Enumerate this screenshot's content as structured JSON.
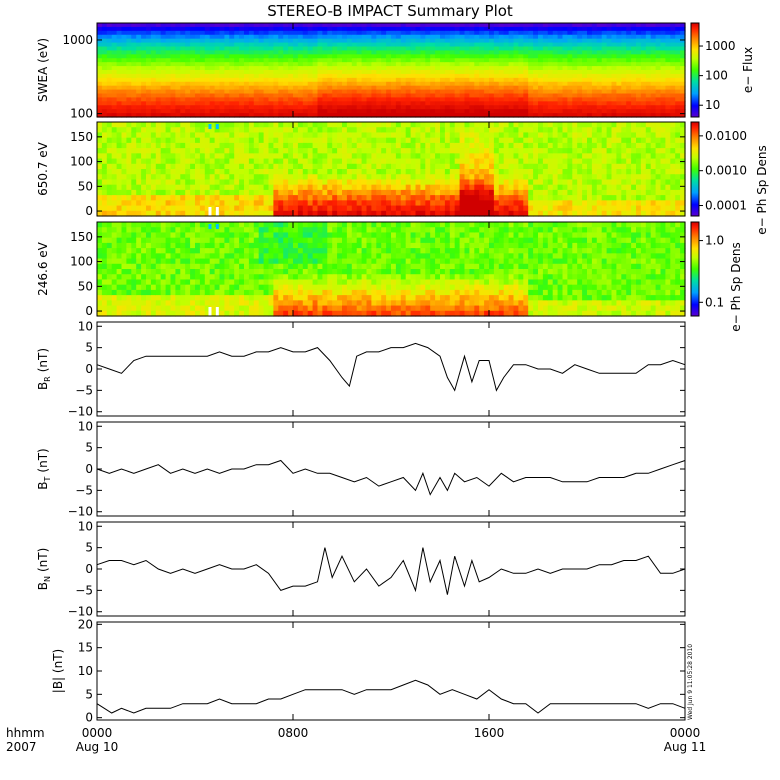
{
  "title": "STEREO-B IMPACT Summary Plot",
  "footer": {
    "time_label": "hhmm",
    "year_label": "2007",
    "stamp": "Wed Jun  9 11:05:28 2010"
  },
  "x_ticks": [
    {
      "value": 0,
      "label": "0000",
      "sublabel": "Aug 10"
    },
    {
      "value": 8,
      "label": "0800",
      "sublabel": ""
    },
    {
      "value": 16,
      "label": "1600",
      "sublabel": ""
    },
    {
      "value": 24,
      "label": "0000",
      "sublabel": "Aug 11"
    }
  ],
  "colorbars": [
    {
      "label": "e− Flux",
      "ticks": [
        {
          "value": 1000,
          "label": "1000"
        },
        {
          "value": 100,
          "label": "100"
        },
        {
          "value": 10,
          "label": "10"
        }
      ],
      "range": [
        4,
        6000
      ]
    },
    {
      "label": "e− Ph Sp Dens",
      "ticks": [
        {
          "value": 0.01,
          "label": "0.0100"
        },
        {
          "value": 0.001,
          "label": "0.0010"
        },
        {
          "value": 0.0001,
          "label": "0.0001"
        }
      ],
      "range": [
        5e-05,
        0.025
      ]
    },
    {
      "label": "e− Ph Sp Dens",
      "ticks": [
        {
          "value": 1.0,
          "label": "1.0"
        },
        {
          "value": 0.1,
          "label": "0.1"
        }
      ],
      "range": [
        0.06,
        2.0
      ]
    }
  ],
  "colors": {
    "scale": [
      "#5a00d0",
      "#0000ff",
      "#00a0ff",
      "#00e0a0",
      "#40ff00",
      "#c0ff00",
      "#ffe000",
      "#ff8000",
      "#ff2000",
      "#d00000"
    ],
    "axis": "#000000",
    "line": "#000000"
  },
  "chart_data": [
    {
      "type": "heatmap",
      "panel": "swea",
      "ylabel": "SWEA (eV)",
      "yscale": "log",
      "ylim": [
        90,
        1700
      ],
      "y_ticks": [
        {
          "value": 1000,
          "label": "1000"
        },
        {
          "value": 100,
          "label": "100"
        }
      ],
      "colorbar_label": "e− Flux",
      "description_bands": [
        {
          "energy_eV": 1600,
          "level": 0.05
        },
        {
          "energy_eV": 1000,
          "level": 0.35
        },
        {
          "energy_eV": 500,
          "level": 0.58
        },
        {
          "energy_eV": 250,
          "level": 0.72
        },
        {
          "energy_eV": 150,
          "level": 0.85
        },
        {
          "energy_eV": 100,
          "level": 0.92
        }
      ]
    },
    {
      "type": "heatmap",
      "panel": "pad_650",
      "ylabel": "650.7 eV",
      "ylim": [
        -10,
        180
      ],
      "y_ticks": [
        {
          "value": 150,
          "label": "150"
        },
        {
          "value": 100,
          "label": "100"
        },
        {
          "value": 50,
          "label": "50"
        },
        {
          "value": 0,
          "label": "0"
        }
      ],
      "colorbar_label": "e− Ph Sp Dens"
    },
    {
      "type": "heatmap",
      "panel": "pad_246",
      "ylabel": "246.6 eV",
      "ylim": [
        -10,
        180
      ],
      "y_ticks": [
        {
          "value": 150,
          "label": "150"
        },
        {
          "value": 100,
          "label": "100"
        },
        {
          "value": 50,
          "label": "50"
        },
        {
          "value": 0,
          "label": "0"
        }
      ],
      "colorbar_label": "e− Ph Sp Dens"
    },
    {
      "type": "line",
      "panel": "br",
      "ylabel": "B",
      "ylabel_sub": "R",
      "ylabel_unit": "(nT)",
      "ylim": [
        -11,
        11
      ],
      "y_ticks": [
        {
          "value": 10,
          "label": "10"
        },
        {
          "value": 5,
          "label": "5"
        },
        {
          "value": 0,
          "label": "0"
        },
        {
          "value": -5,
          "label": "−5"
        },
        {
          "value": -10,
          "label": "−10"
        }
      ],
      "x": [
        0,
        0.5,
        1,
        1.5,
        2,
        2.5,
        3,
        3.5,
        4,
        4.5,
        5,
        5.5,
        6,
        6.5,
        7,
        7.5,
        8,
        8.5,
        9,
        9.5,
        10,
        10.3,
        10.6,
        11,
        11.5,
        12,
        12.5,
        13,
        13.5,
        14,
        14.3,
        14.6,
        15,
        15.3,
        15.6,
        16,
        16.3,
        16.6,
        17,
        17.5,
        18,
        18.5,
        19,
        19.5,
        20,
        20.5,
        21,
        21.5,
        22,
        22.5,
        23,
        23.5,
        24
      ],
      "y": [
        1,
        0,
        -1,
        2,
        3,
        3,
        3,
        3,
        3,
        3,
        4,
        3,
        3,
        4,
        4,
        5,
        4,
        4,
        5,
        2,
        -2,
        -4,
        3,
        4,
        4,
        5,
        5,
        6,
        5,
        3,
        -2,
        -5,
        3,
        -3,
        2,
        2,
        -5,
        -2,
        1,
        1,
        0,
        0,
        -1,
        1,
        0,
        -1,
        -1,
        -1,
        -1,
        1,
        1,
        2,
        1
      ]
    },
    {
      "type": "line",
      "panel": "bt",
      "ylabel": "B",
      "ylabel_sub": "T",
      "ylabel_unit": "(nT)",
      "ylim": [
        -11,
        11
      ],
      "y_ticks": [
        {
          "value": 10,
          "label": "10"
        },
        {
          "value": 5,
          "label": "5"
        },
        {
          "value": 0,
          "label": "0"
        },
        {
          "value": -5,
          "label": "−5"
        },
        {
          "value": -10,
          "label": "−10"
        }
      ],
      "x": [
        0,
        0.5,
        1,
        1.5,
        2,
        2.5,
        3,
        3.5,
        4,
        4.5,
        5,
        5.5,
        6,
        6.5,
        7,
        7.5,
        8,
        8.5,
        9,
        9.5,
        10,
        10.5,
        11,
        11.5,
        12,
        12.5,
        13,
        13.3,
        13.6,
        14,
        14.3,
        14.6,
        15,
        15.5,
        16,
        16.5,
        17,
        17.5,
        18,
        18.5,
        19,
        19.5,
        20,
        20.5,
        21,
        21.5,
        22,
        22.5,
        23,
        23.5,
        24
      ],
      "y": [
        0,
        -1,
        0,
        -1,
        0,
        1,
        -1,
        0,
        -1,
        0,
        -1,
        0,
        0,
        1,
        1,
        2,
        -1,
        0,
        -1,
        -1,
        -2,
        -3,
        -2,
        -4,
        -3,
        -2,
        -5,
        -1,
        -6,
        -2,
        -5,
        -1,
        -3,
        -2,
        -4,
        -1,
        -3,
        -2,
        -2,
        -2,
        -3,
        -3,
        -3,
        -2,
        -2,
        -2,
        -1,
        -1,
        0,
        1,
        2
      ]
    },
    {
      "type": "line",
      "panel": "bn",
      "ylabel": "B",
      "ylabel_sub": "N",
      "ylabel_unit": "(nT)",
      "ylim": [
        -11,
        11
      ],
      "y_ticks": [
        {
          "value": 10,
          "label": "10"
        },
        {
          "value": 5,
          "label": "5"
        },
        {
          "value": 0,
          "label": "0"
        },
        {
          "value": -5,
          "label": "−5"
        },
        {
          "value": -10,
          "label": "−10"
        }
      ],
      "x": [
        0,
        0.5,
        1,
        1.5,
        2,
        2.5,
        3,
        3.5,
        4,
        4.5,
        5,
        5.5,
        6,
        6.5,
        7,
        7.5,
        8,
        8.5,
        9,
        9.3,
        9.6,
        10,
        10.5,
        11,
        11.5,
        12,
        12.5,
        13,
        13.3,
        13.6,
        14,
        14.3,
        14.6,
        15,
        15.3,
        15.6,
        16,
        16.5,
        17,
        17.5,
        18,
        18.5,
        19,
        19.5,
        20,
        20.5,
        21,
        21.5,
        22,
        22.5,
        23,
        23.5,
        24
      ],
      "y": [
        1,
        2,
        2,
        1,
        2,
        0,
        -1,
        0,
        -1,
        0,
        1,
        0,
        0,
        1,
        -1,
        -5,
        -4,
        -4,
        -3,
        5,
        -2,
        3,
        -3,
        0,
        -4,
        -2,
        2,
        -5,
        5,
        -3,
        2,
        -6,
        3,
        -4,
        2,
        -3,
        -2,
        0,
        -1,
        -1,
        0,
        -1,
        0,
        0,
        0,
        1,
        1,
        2,
        2,
        3,
        -1,
        -1,
        0
      ]
    },
    {
      "type": "line",
      "panel": "btot",
      "ylabel": "|B| (nT)",
      "ylim": [
        -0.5,
        20.5
      ],
      "y_ticks": [
        {
          "value": 20,
          "label": "20"
        },
        {
          "value": 15,
          "label": "15"
        },
        {
          "value": 10,
          "label": "10"
        },
        {
          "value": 5,
          "label": "5"
        },
        {
          "value": 0,
          "label": "0"
        }
      ],
      "x": [
        0,
        0.3,
        0.6,
        1,
        1.5,
        2,
        2.5,
        3,
        3.5,
        4,
        4.5,
        5,
        5.5,
        6,
        6.5,
        7,
        7.5,
        8,
        8.5,
        9,
        9.5,
        10,
        10.5,
        11,
        11.5,
        12,
        12.5,
        13,
        13.5,
        14,
        14.5,
        15,
        15.5,
        16,
        16.5,
        17,
        17.5,
        18,
        18.5,
        19,
        19.5,
        20,
        20.5,
        21,
        21.5,
        22,
        22.5,
        23,
        23.5,
        24
      ],
      "y": [
        3,
        2,
        1,
        2,
        1,
        2,
        2,
        2,
        3,
        3,
        3,
        4,
        3,
        3,
        3,
        4,
        4,
        5,
        6,
        6,
        6,
        6,
        5,
        6,
        6,
        6,
        7,
        8,
        7,
        5,
        6,
        5,
        4,
        6,
        4,
        3,
        3,
        1,
        3,
        3,
        3,
        3,
        3,
        3,
        3,
        3,
        2,
        3,
        3,
        2
      ]
    }
  ]
}
